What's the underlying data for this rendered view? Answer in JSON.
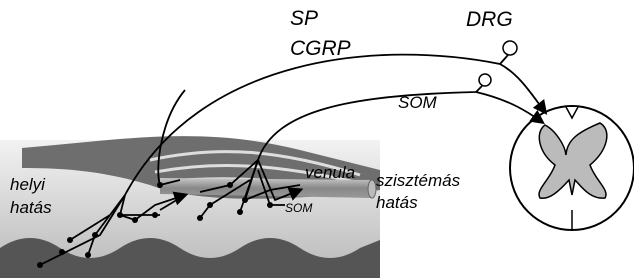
{
  "labels": [
    "SP",
    "CGRP",
    "DRG",
    "SOM",
    "venula",
    "szisztémás",
    "hatás",
    "helyi",
    "hatás",
    "SOM"
  ]
}
